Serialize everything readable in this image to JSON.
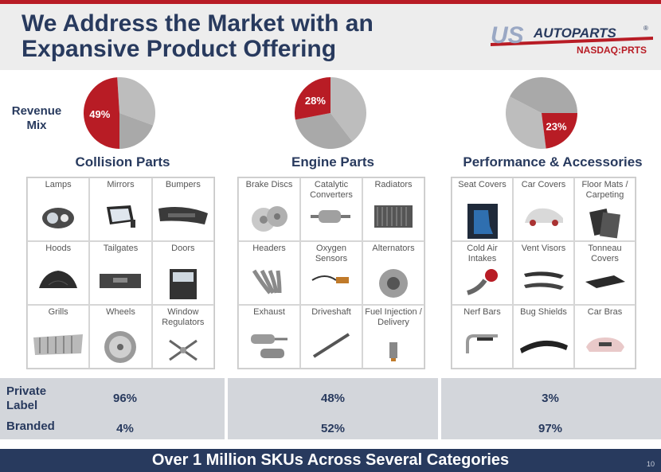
{
  "slide": {
    "title": "We Address the Market with an Expansive Product Offering",
    "logo_text": "US AUTOPARTS",
    "ticker": "NASDAQ:PRTS",
    "revenue_mix_label": "Revenue Mix",
    "footer": "Over 1 Million SKUs Across Several Categories",
    "page_number": "10"
  },
  "categories": [
    {
      "name": "Collision Parts",
      "revenue_share_label": "49%",
      "revenue_share": 0.49,
      "products": [
        "Lamps",
        "Mirrors",
        "Bumpers",
        "Hoods",
        "Tailgates",
        "Doors",
        "Grills",
        "Wheels",
        "Window Regulators"
      ],
      "private_label": "96%",
      "branded": "4%"
    },
    {
      "name": "Engine Parts",
      "revenue_share_label": "28%",
      "revenue_share": 0.28,
      "products": [
        "Brake Discs",
        "Catalytic Converters",
        "Radiators",
        "Headers",
        "Oxygen Sensors",
        "Alternators",
        "Exhaust",
        "Driveshaft",
        "Fuel Injection / Delivery"
      ],
      "private_label": "48%",
      "branded": "52%"
    },
    {
      "name": "Performance & Accessories",
      "revenue_share_label": "23%",
      "revenue_share": 0.23,
      "products": [
        "Seat Covers",
        "Car Covers",
        "Floor Mats / Carpeting",
        "Cold Air Intakes",
        "Vent Visors",
        "Tonneau Covers",
        "Nerf Bars",
        "Bug Shields",
        "Car Bras"
      ],
      "private_label": "3%",
      "branded": "97%"
    }
  ],
  "table": {
    "private_label_row": "Private Label",
    "branded_row": "Branded"
  },
  "colors": {
    "navy": "#283a5e",
    "red": "#b81c25",
    "pie_gray_light": "#bdbdbd",
    "pie_gray_dark": "#a9a9a9",
    "band": "#d3d6db"
  }
}
